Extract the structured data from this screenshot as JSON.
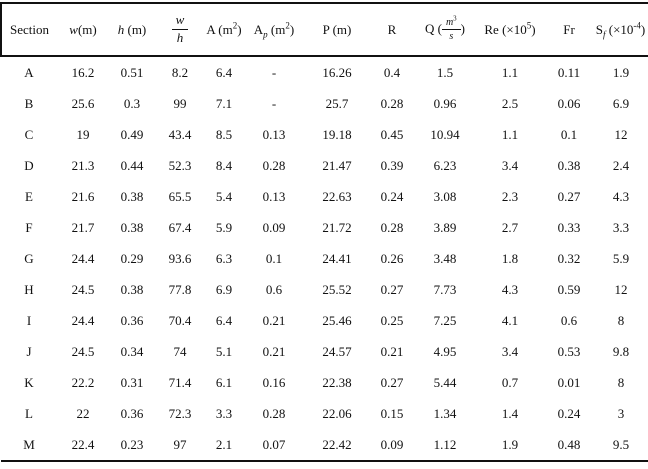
{
  "colors": {
    "background": "#ffffff",
    "text": "#111111",
    "rule": "#111111"
  },
  "table": {
    "columns": [
      {
        "id": "section",
        "label": "Section"
      },
      {
        "id": "w",
        "label": "~{w}(m)"
      },
      {
        "id": "h",
        "label": "~{h} (m)"
      },
      {
        "id": "w-over-h",
        "pre": "",
        "frac": {
          "top": "~{w}",
          "bottom": "~{h}"
        },
        "post": ""
      },
      {
        "id": "area",
        "label": "A (m^{2})"
      },
      {
        "id": "plume-area",
        "label": "A_{p} (m^{2})"
      },
      {
        "id": "perimeter",
        "label": "P (m)"
      },
      {
        "id": "hydraulic-radius",
        "label": "R"
      },
      {
        "id": "discharge",
        "pre": "Q (",
        "frac": {
          "top": "~{m}^{3}",
          "bottom": "~{s}"
        },
        "post": ")"
      },
      {
        "id": "reynolds",
        "label": "Re (×10^{5})"
      },
      {
        "id": "froude",
        "label": "Fr"
      },
      {
        "id": "friction-slope",
        "label": "S_{f} (×10^{-4})"
      }
    ],
    "rows": [
      {
        "section": "A",
        "values": [
          "16.2",
          "0.51",
          "8.2",
          "6.4",
          "-",
          "16.26",
          "0.4",
          "1.5",
          "1.1",
          "0.11",
          "1.9"
        ]
      },
      {
        "section": "B",
        "values": [
          "25.6",
          "0.3",
          "99",
          "7.1",
          "-",
          "25.7",
          "0.28",
          "0.96",
          "2.5",
          "0.06",
          "6.9"
        ]
      },
      {
        "section": "C",
        "values": [
          "19",
          "0.49",
          "43.4",
          "8.5",
          "0.13",
          "19.18",
          "0.45",
          "10.94",
          "1.1",
          "0.1",
          "12"
        ]
      },
      {
        "section": "D",
        "values": [
          "21.3",
          "0.44",
          "52.3",
          "8.4",
          "0.28",
          "21.47",
          "0.39",
          "6.23",
          "3.4",
          "0.38",
          "2.4"
        ]
      },
      {
        "section": "E",
        "values": [
          "21.6",
          "0.38",
          "65.5",
          "5.4",
          "0.13",
          "22.63",
          "0.24",
          "3.08",
          "2.3",
          "0.27",
          "4.3"
        ]
      },
      {
        "section": "F",
        "values": [
          "21.7",
          "0.38",
          "67.4",
          "5.9",
          "0.09",
          "21.72",
          "0.28",
          "3.89",
          "2.7",
          "0.33",
          "3.3"
        ]
      },
      {
        "section": "G",
        "values": [
          "24.4",
          "0.29",
          "93.6",
          "6.3",
          "0.1",
          "24.41",
          "0.26",
          "3.48",
          "1.8",
          "0.32",
          "5.9"
        ]
      },
      {
        "section": "H",
        "values": [
          "24.5",
          "0.38",
          "77.8",
          "6.9",
          "0.6",
          "25.52",
          "0.27",
          "7.73",
          "4.3",
          "0.59",
          "12"
        ]
      },
      {
        "section": "I",
        "values": [
          "24.4",
          "0.36",
          "70.4",
          "6.4",
          "0.21",
          "25.46",
          "0.25",
          "7.25",
          "4.1",
          "0.6",
          "8"
        ]
      },
      {
        "section": "J",
        "values": [
          "24.5",
          "0.34",
          "74",
          "5.1",
          "0.21",
          "24.57",
          "0.21",
          "4.95",
          "3.4",
          "0.53",
          "9.8"
        ]
      },
      {
        "section": "K",
        "values": [
          "22.2",
          "0.31",
          "71.4",
          "6.1",
          "0.16",
          "22.38",
          "0.27",
          "5.44",
          "0.7",
          "0.01",
          "8"
        ]
      },
      {
        "section": "L",
        "values": [
          "22",
          "0.36",
          "72.3",
          "3.3",
          "0.28",
          "22.06",
          "0.15",
          "1.34",
          "1.4",
          "0.24",
          "3"
        ]
      },
      {
        "section": "M",
        "values": [
          "22.4",
          "0.23",
          "97",
          "2.1",
          "0.07",
          "22.42",
          "0.09",
          "1.12",
          "1.9",
          "0.48",
          "9.5"
        ]
      }
    ]
  }
}
